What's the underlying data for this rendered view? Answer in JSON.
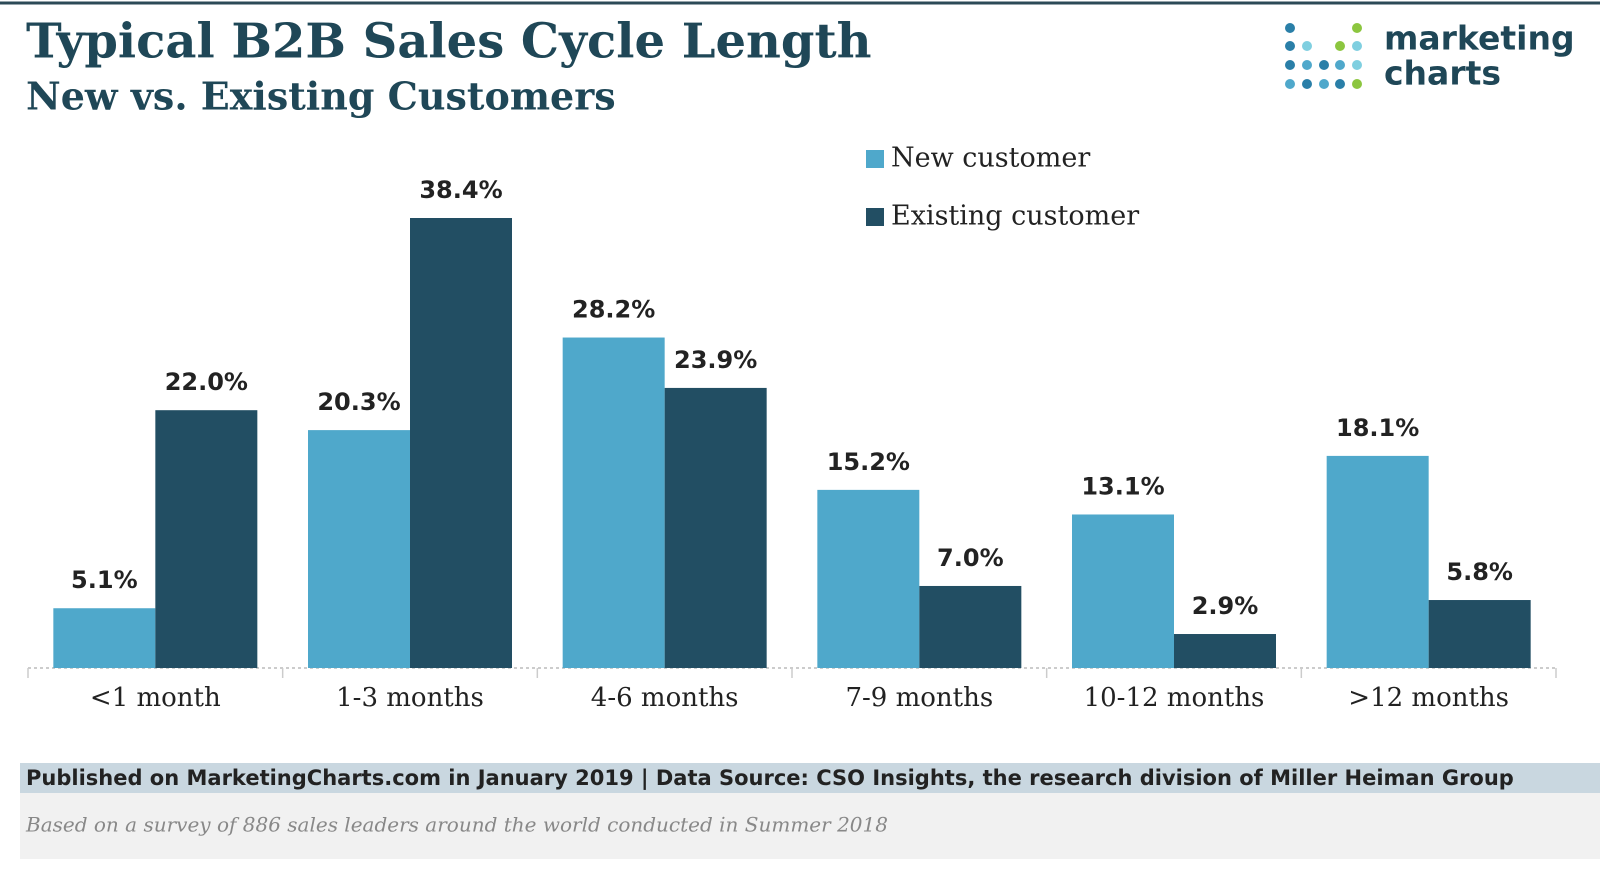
{
  "chart_data": {
    "type": "bar",
    "title": "Typical B2B Sales Cycle Length",
    "subtitle": "New vs. Existing Customers",
    "categories": [
      "<1 month",
      "1-3 months",
      "4-6 months",
      "7-9 months",
      "10-12 months",
      ">12 months"
    ],
    "series": [
      {
        "name": "New customer",
        "color": "#4fa8cb",
        "values": [
          5.1,
          20.3,
          28.2,
          15.2,
          13.1,
          18.1
        ],
        "value_labels": [
          "5.1%",
          "20.3%",
          "28.2%",
          "15.2%",
          "13.1%",
          "18.1%"
        ]
      },
      {
        "name": "Existing customer",
        "color": "#224e63",
        "values": [
          22.0,
          38.4,
          23.9,
          7.0,
          2.9,
          5.8
        ],
        "value_labels": [
          "22.0%",
          "38.4%",
          "23.9%",
          "7.0%",
          "2.9%",
          "5.8%"
        ]
      }
    ],
    "legend": "top-right",
    "grid": false
  },
  "logo": [
    "marketing",
    "charts"
  ],
  "source": "Published on MarketingCharts.com in January 2019 | Data Source: CSO Insights, the research division of Miller Heiman Group",
  "note": "Based on a survey of 886 sales leaders around the world conducted in Summer 2018"
}
